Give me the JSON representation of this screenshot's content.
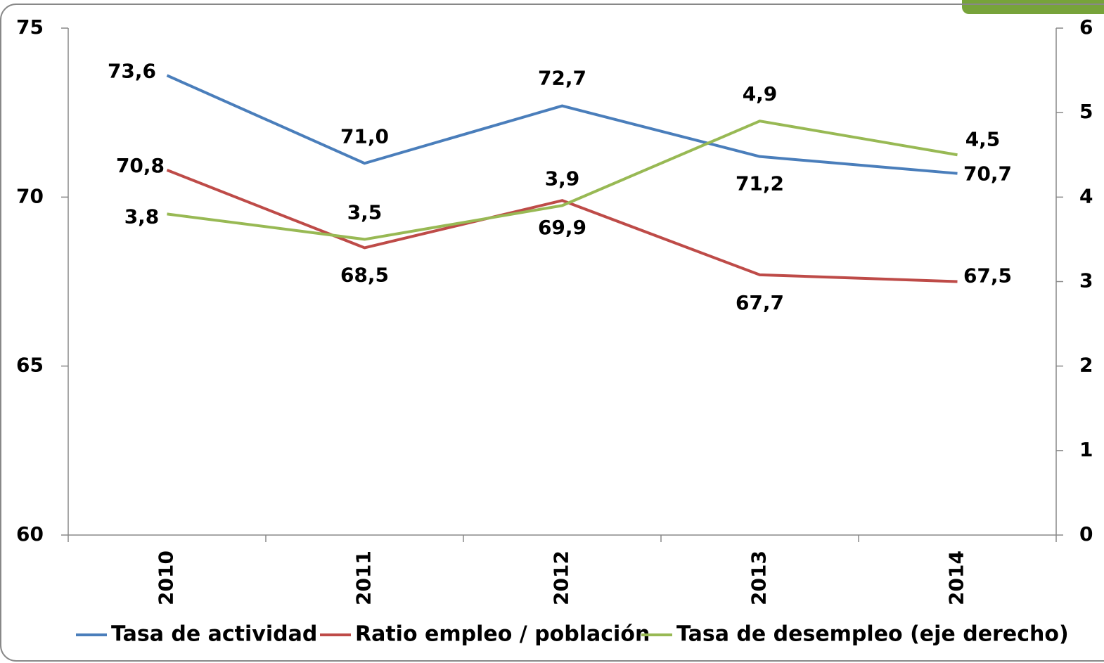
{
  "chart_data": {
    "type": "line",
    "categories": [
      "2010",
      "2011",
      "2012",
      "2013",
      "2014"
    ],
    "series": [
      {
        "name": "Tasa de actividad",
        "color": "#4a7ebb",
        "values": [
          73.6,
          71.0,
          72.7,
          71.2,
          70.7
        ],
        "value_labels": [
          "73,6",
          "71,0",
          "72,7",
          "71,2",
          "70,7"
        ]
      },
      {
        "name": "Ratio empleo / población",
        "color": "#be4b48",
        "values": [
          70.8,
          68.5,
          69.9,
          67.7,
          67.5
        ],
        "value_labels": [
          "70,8",
          "68,5",
          "69,9",
          "67,7",
          "67,5"
        ]
      },
      {
        "name": "Tasa de desempleo (eje derecho)",
        "color": "#98b954",
        "axis": "y2",
        "values": [
          3.8,
          3.5,
          3.9,
          4.9,
          4.5
        ],
        "value_labels": [
          "3,8",
          "3,5",
          "3,9",
          "4,9",
          "4,5"
        ]
      }
    ],
    "ylim": [
      60,
      75
    ],
    "yticks": [
      60,
      65,
      70,
      75
    ],
    "y2lim": [
      0,
      6
    ],
    "y2ticks": [
      0,
      1,
      2,
      3,
      4,
      5,
      6
    ],
    "legend": "bottom"
  }
}
